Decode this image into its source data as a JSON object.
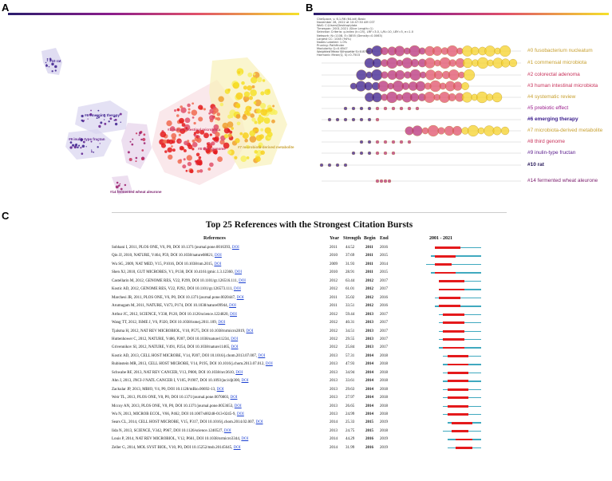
{
  "panel_labels": {
    "a": "A",
    "b": "B",
    "c": "C"
  },
  "colors": {
    "early": "#3a1c8c",
    "mid": "#c8325a",
    "late": "#f5e12a",
    "burst": "#e41a1c",
    "line": "#40a9bf"
  },
  "panel_a": {
    "labels": [
      {
        "text": "#10 rat",
        "color": "#3a1c8c"
      },
      {
        "text": "#6 emerging therapy",
        "color": "#3a1c8c"
      },
      {
        "text": "#9 inulin-type fructan",
        "color": "#5a1c8c"
      },
      {
        "text": "#14 fermented wheat aleurone",
        "color": "#7a1c6c"
      },
      {
        "text": "#3 human intestinal microbiota",
        "color": "#c8325a"
      },
      {
        "text": "#7 microbiota-derived metabolite",
        "color": "#c8a030"
      },
      {
        "text": "#8 third genome",
        "color": "#c8325a"
      }
    ]
  },
  "panel_b": {
    "meta_lines": [
      "CiteSpace, v. 6.1.R6 (64-bit) Basic",
      "November 28, 2022 at 10:47:30 AM CST",
      "WoS: C:\\Users\\Desktop\\data",
      "Timespan: 2001-2021 (Slice Length=1)",
      "Selection Criteria: g-index (k=25), LRF=3.0, L/N=10, LBY=5, e=1.0",
      "Network: N=1108, E=3855 (Density=0.0063)",
      "Largest CC: 1045 (94%)",
      "Nodes Labeled: 1.0%",
      "Pruning: Pathfinder",
      "Modularity Q=0.6547",
      "Weighted Mean Silhouette S=0.8788",
      "Harmonic Mean(Q, S)=0.7503"
    ],
    "clusters": [
      {
        "label": "#0 fusobacterium nucleatum",
        "color": "#c8a030"
      },
      {
        "label": "#1 commensal microbiota",
        "color": "#c8a030"
      },
      {
        "label": "#2 colorectal adenoma",
        "color": "#c8325a"
      },
      {
        "label": "#3 human intestinal microbiota",
        "color": "#c8325a"
      },
      {
        "label": "#4 systematic review",
        "color": "#c8a030"
      },
      {
        "label": "#5 prebiotic effect",
        "color": "#9a1c8c"
      },
      {
        "label": "#6 emerging therapy",
        "color": "#3a1c8c"
      },
      {
        "label": "#7 microbiota-derived metabolite",
        "color": "#c8a030"
      },
      {
        "label": "#8 third genome",
        "color": "#c8325a"
      },
      {
        "label": "#9 inulin-type fructan",
        "color": "#5a1c8c"
      },
      {
        "label": "#10 rat",
        "color": "#2a1c5c"
      },
      {
        "label": "#14 fermented wheat aleurone",
        "color": "#7a1c6c"
      }
    ]
  },
  "panel_c": {
    "title": "Top 25 References with the Strongest Citation Bursts",
    "headers": {
      "references": "References",
      "year": "Year",
      "strength": "Strength",
      "begin": "Begin",
      "end": "End",
      "range": "2001 - 2021"
    },
    "rows": [
      {
        "ref": "Sobhani I, 2011, PLOS ONE, V6, P0, DOI 10.1371/journal.pone.0016393,",
        "doi": "DOI",
        "year": "2011",
        "strength": "44.52",
        "begin": "2011",
        "end": "2016"
      },
      {
        "ref": "Qin JJ, 2010, NATURE, V464, P59, DOI 10.1038/nature08821,",
        "doi": "DOI",
        "year": "2010",
        "strength": "37.69",
        "begin": "2011",
        "end": "2015"
      },
      {
        "ref": "Wu SG, 2009, NAT MED, V15, P1016, DOI 10.1038/nm.2015,",
        "doi": "DOI",
        "year": "2009",
        "strength": "31.93",
        "begin": "2011",
        "end": "2014"
      },
      {
        "ref": "Shen XJ, 2010, GUT MICROBES, V1, P138, DOI 10.4161/gmic.1.3.12360,",
        "doi": "DOI",
        "year": "2010",
        "strength": "28.91",
        "begin": "2011",
        "end": "2015"
      },
      {
        "ref": "Castellarin M, 2012, GENOME RES, V22, P299, DOI 10.1101/gr.126516.111,",
        "doi": "DOI",
        "year": "2012",
        "strength": "63.44",
        "begin": "2012",
        "end": "2017"
      },
      {
        "ref": "Kostic AD, 2012, GENOME RES, V22, P292, DOI 10.1101/gr.126573.111,",
        "doi": "DOI",
        "year": "2012",
        "strength": "61.01",
        "begin": "2012",
        "end": "2017"
      },
      {
        "ref": "Marchesi JR, 2011, PLOS ONE, V6, P0, DOI 10.1371/journal.pone.0020447,",
        "doi": "DOI",
        "year": "2011",
        "strength": "35.02",
        "begin": "2012",
        "end": "2016"
      },
      {
        "ref": "Arumugam M, 2011, NATURE, V473, P174, DOI 10.1038/nature09944,",
        "doi": "DOI",
        "year": "2011",
        "strength": "33.51",
        "begin": "2012",
        "end": "2016"
      },
      {
        "ref": "Arthur JC, 2012, SCIENCE, V338, P120, DOI 10.1126/science.1224820,",
        "doi": "DOI",
        "year": "2012",
        "strength": "59.44",
        "begin": "2013",
        "end": "2017"
      },
      {
        "ref": "Wang TT, 2012, ISME J, V6, P320, DOI 10.1038/ismej.2011.109,",
        "doi": "DOI",
        "year": "2012",
        "strength": "40.31",
        "begin": "2013",
        "end": "2017"
      },
      {
        "ref": "Tjalsma H, 2012, NAT REV MICROBIOL, V10, P575, DOI 10.1038/nrmicro2819,",
        "doi": "DOI",
        "year": "2012",
        "strength": "34.51",
        "begin": "2013",
        "end": "2017"
      },
      {
        "ref": "Huttenhower C, 2012, NATURE, V486, P207, DOI 10.1038/nature11234,",
        "doi": "DOI",
        "year": "2012",
        "strength": "29.55",
        "begin": "2013",
        "end": "2017"
      },
      {
        "ref": "Grivennikov SI, 2012, NATURE, V491, P254, DOI 10.1038/nature11465,",
        "doi": "DOI",
        "year": "2012",
        "strength": "25.84",
        "begin": "2013",
        "end": "2017"
      },
      {
        "ref": "Kostic AD, 2013, CELL HOST MICROBE, V14, P207, DOI 10.1016/j.chom.2013.07.007,",
        "doi": "DOI",
        "year": "2013",
        "strength": "57.31",
        "begin": "2014",
        "end": "2018"
      },
      {
        "ref": "Rubinstein MR, 2013, CELL HOST MICROBE, V14, P195, DOI 10.1016/j.chom.2013.07.012,",
        "doi": "DOI",
        "year": "2013",
        "strength": "47.93",
        "begin": "2014",
        "end": "2018"
      },
      {
        "ref": "Schwabe RF, 2013, NAT REV CANCER, V13, P800, DOI 10.1038/nrc3610,",
        "doi": "DOI",
        "year": "2013",
        "strength": "34.94",
        "begin": "2014",
        "end": "2018"
      },
      {
        "ref": "Ahn J, 2013, JNCI-J NATL CANCER I, V105, P1907, DOI 10.1093/jnci/djt300,",
        "doi": "DOI",
        "year": "2013",
        "strength": "33.61",
        "begin": "2014",
        "end": "2018"
      },
      {
        "ref": "Zackular JP, 2013, MBIO, V4, P0, DOI 10.1128/mBio.00692-13,",
        "doi": "DOI",
        "year": "2013",
        "strength": "29.63",
        "begin": "2014",
        "end": "2018"
      },
      {
        "ref": "Weir TL, 2013, PLOS ONE, V8, P0, DOI 10.1371/journal.pone.0070803,",
        "doi": "DOI",
        "year": "2013",
        "strength": "27.97",
        "begin": "2014",
        "end": "2018"
      },
      {
        "ref": "Mccoy AN, 2013, PLOS ONE, V8, P0, DOI 10.1371/journal.pone.0053653,",
        "doi": "DOI",
        "year": "2013",
        "strength": "26.65",
        "begin": "2014",
        "end": "2018"
      },
      {
        "ref": "Wu N, 2013, MICROB ECOL, V66, P462, DOI 10.1007/s00248-013-0245-9,",
        "doi": "DOI",
        "year": "2013",
        "strength": "24.99",
        "begin": "2014",
        "end": "2018"
      },
      {
        "ref": "Sears CL, 2014, CELL HOST MICROBE, V15, P317, DOI 10.1016/j.chom.2014.02.007,",
        "doi": "DOI",
        "year": "2014",
        "strength": "25.33",
        "begin": "2015",
        "end": "2019"
      },
      {
        "ref": "Iida N, 2013, SCIENCE, V342, P967, DOI 10.1126/science.1240527,",
        "doi": "DOI",
        "year": "2013",
        "strength": "24.75",
        "begin": "2015",
        "end": "2018"
      },
      {
        "ref": "Louis P, 2014, NAT REV MICROBIOL, V12, P661, DOI 10.1038/nrmicro3344,",
        "doi": "DOI",
        "year": "2014",
        "strength": "44.29",
        "begin": "2016",
        "end": "2019"
      },
      {
        "ref": "Zeller G, 2014, MOL SYST BIOL, V10, P0, DOI 10.15252/msb.20145645,",
        "doi": "DOI",
        "year": "2014",
        "strength": "31.99",
        "begin": "2016",
        "end": "2019"
      }
    ]
  }
}
